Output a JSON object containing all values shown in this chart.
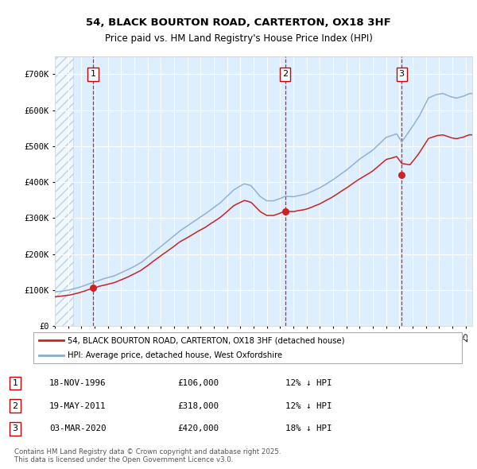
{
  "title": "54, BLACK BOURTON ROAD, CARTERTON, OX18 3HF",
  "subtitle": "Price paid vs. HM Land Registry's House Price Index (HPI)",
  "ylim": [
    0,
    750000
  ],
  "xlim_start": 1994.0,
  "xlim_end": 2025.5,
  "sale_dates": [
    1996.88,
    2011.38,
    2020.17
  ],
  "sale_prices": [
    106000,
    318000,
    420000
  ],
  "sale_labels": [
    "1",
    "2",
    "3"
  ],
  "legend_line1": "54, BLACK BOURTON ROAD, CARTERTON, OX18 3HF (detached house)",
  "legend_line2": "HPI: Average price, detached house, West Oxfordshire",
  "table_rows": [
    [
      "1",
      "18-NOV-1996",
      "£106,000",
      "12% ↓ HPI"
    ],
    [
      "2",
      "19-MAY-2011",
      "£318,000",
      "12% ↓ HPI"
    ],
    [
      "3",
      "03-MAR-2020",
      "£420,000",
      "18% ↓ HPI"
    ]
  ],
  "footnote": "Contains HM Land Registry data © Crown copyright and database right 2025.\nThis data is licensed under the Open Government Licence v3.0.",
  "hpi_color": "#88aad4",
  "price_color": "#cc2222",
  "vline_color": "#cc0000",
  "background_color": "#ddeeff",
  "hatch_color": "#bbccdd",
  "hatch_end": 1995.4
}
